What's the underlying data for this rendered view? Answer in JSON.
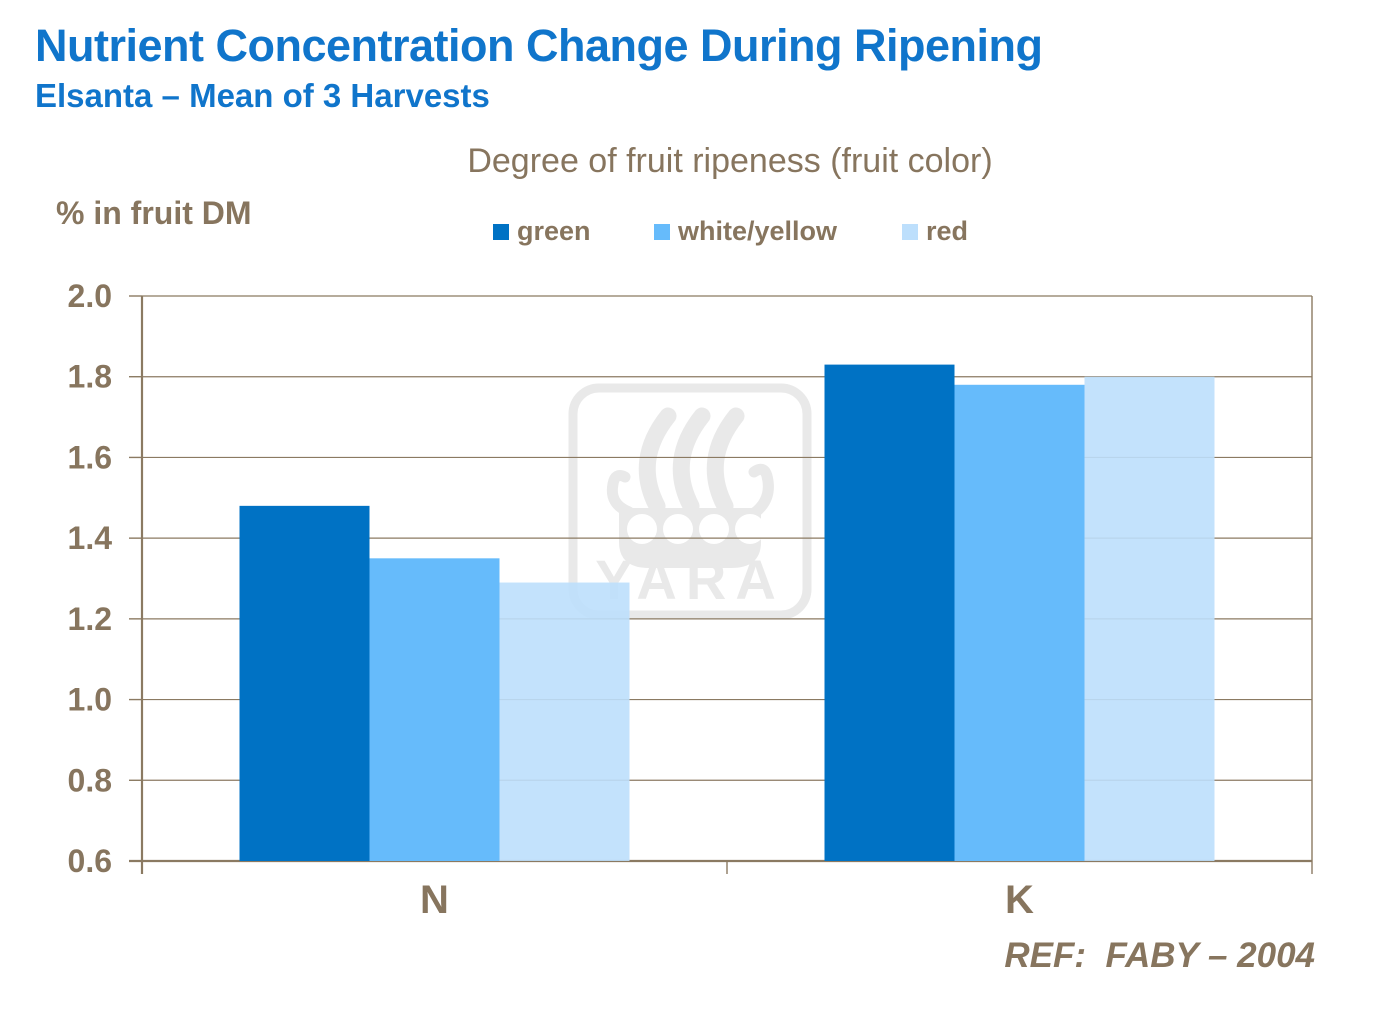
{
  "header": {
    "title": "Nutrient Concentration Change During Ripening",
    "subtitle": "Elsanta – Mean of 3 Harvests"
  },
  "legend": {
    "title": "Degree of fruit ripeness (fruit color)",
    "items": [
      {
        "label": "green",
        "color": "#0072C4"
      },
      {
        "label": "white/yellow",
        "color": "#66BBFB"
      },
      {
        "label": "red",
        "color": "#BDDFFC"
      }
    ]
  },
  "y_axis_title": "% in fruit DM",
  "watermark": {
    "icon": "yara-viking-ship-logo",
    "text": "YARA"
  },
  "footer": {
    "ref": "REF:  FABY – 2004"
  },
  "colors": {
    "title_blue": "#1075CB",
    "text_brown": "#87755E",
    "grid_brown": "#8B7A62",
    "watermark_gray": "#E9E9E9"
  },
  "chart_data": {
    "type": "bar",
    "title": "Nutrient Concentration Change During Ripening",
    "subtitle": "Elsanta – Mean of 3 Harvests",
    "legend_title": "Degree of fruit ripeness (fruit color)",
    "legend_position": "top",
    "ylabel": "% in fruit DM",
    "xlabel": "",
    "categories": [
      "N",
      "K"
    ],
    "series": [
      {
        "name": "green",
        "color": "#0072C4",
        "values": [
          1.48,
          1.83
        ]
      },
      {
        "name": "white/yellow",
        "color": "#66BBFB",
        "values": [
          1.35,
          1.78
        ]
      },
      {
        "name": "red",
        "color": "#BDDFFC",
        "values": [
          1.29,
          1.8
        ]
      }
    ],
    "ylim": [
      0.6,
      2.0
    ],
    "ytick_step": 0.2,
    "yticks": [
      "2.0",
      "1.8",
      "1.6",
      "1.4",
      "1.2",
      "1.0",
      "0.8",
      "0.6"
    ],
    "grid": true,
    "annotation": "REF:  FABY – 2004"
  }
}
